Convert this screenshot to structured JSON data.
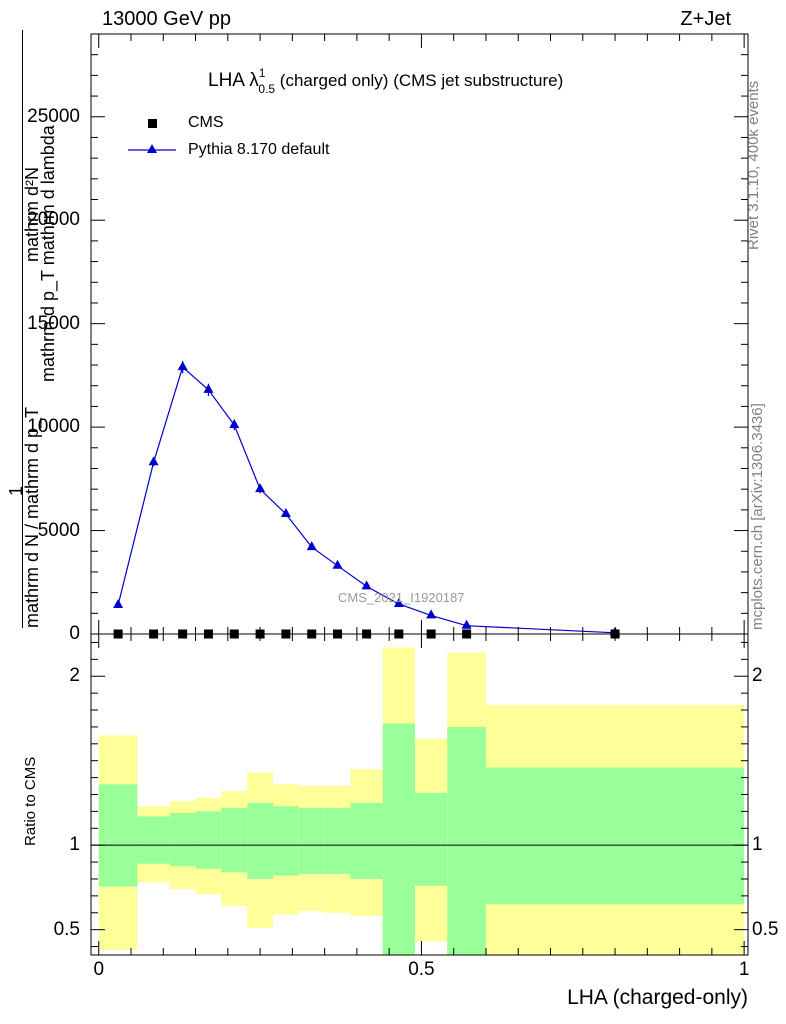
{
  "header": {
    "beam_label": "13000 GeV pp",
    "process_label": "Z+Jet"
  },
  "side_text": {
    "rivet": "Rivet 3.1.10,  400k events",
    "mcplots": "mcplots.cern.ch [arXiv:1306.3436]"
  },
  "watermark": "CMS_2021_I1920187",
  "colors": {
    "mc_line": "#0000cc",
    "band_inner": "#99ff99",
    "band_outer": "#ffff99",
    "data_marker": "#000000"
  },
  "chart_data": [
    {
      "type": "line",
      "title": "LHA λ¹₀.₅ (charged only) (CMS jet substructure)",
      "title_parts": {
        "main": "LHA λ",
        "sup": "1",
        "sub": "0.5",
        "rest": " (charged only) (CMS jet substructure)"
      },
      "ylabel_numerator": "mathrm d²N",
      "ylabel_line1": "mathrm d p_T mathrm d lambda",
      "ylabel_line2": "mathrm d N / mathrm d p_T",
      "ylabel_one": "1",
      "xlim": [
        -0.012,
        1.006
      ],
      "ylim": [
        0,
        29000
      ],
      "yticks": [
        0,
        5000,
        10000,
        15000,
        20000,
        25000
      ],
      "ytick_labels": [
        "0",
        "5000",
        "10000",
        "15000",
        "20000",
        "25000"
      ],
      "legend_position": "top-left",
      "series": [
        {
          "name": "CMS",
          "marker": "square",
          "x": [
            0.03,
            0.085,
            0.13,
            0.17,
            0.21,
            0.25,
            0.29,
            0.33,
            0.37,
            0.415,
            0.465,
            0.515,
            0.57,
            0.8
          ],
          "y": [
            0,
            0,
            0,
            0,
            0,
            0,
            0,
            0,
            0,
            0,
            0,
            0,
            0,
            0
          ]
        },
        {
          "name": "Pythia 8.170 default",
          "marker": "triangle",
          "x": [
            0.03,
            0.085,
            0.13,
            0.17,
            0.21,
            0.25,
            0.29,
            0.33,
            0.37,
            0.415,
            0.465,
            0.515,
            0.57,
            0.8
          ],
          "y": [
            1400,
            8300,
            12900,
            11800,
            10100,
            7000,
            5800,
            4200,
            3300,
            2300,
            1450,
            900,
            400,
            60
          ],
          "yerr": [
            60,
            200,
            300,
            300,
            250,
            200,
            150,
            120,
            100,
            80,
            60,
            40,
            20,
            10
          ]
        }
      ]
    },
    {
      "type": "area",
      "ylabel": "Ratio to CMS",
      "xlabel": "LHA (charged-only)",
      "xlim": [
        -0.012,
        1.006
      ],
      "ylim": [
        0.35,
        2.25
      ],
      "xticks": [
        0,
        0.5,
        1
      ],
      "xtick_labels": [
        "0",
        "0.5",
        "1"
      ],
      "yticks": [
        0.5,
        1,
        2
      ],
      "ytick_labels": [
        "0.5",
        "1",
        "2"
      ],
      "reference_line": 1,
      "bins": [
        {
          "lo": 0.0,
          "hi": 0.06,
          "inner": [
            0.755,
            1.36
          ],
          "outer": [
            0.38,
            1.65
          ]
        },
        {
          "lo": 0.06,
          "hi": 0.11,
          "inner": [
            0.89,
            1.17
          ],
          "outer": [
            0.78,
            1.23
          ]
        },
        {
          "lo": 0.11,
          "hi": 0.15,
          "inner": [
            0.875,
            1.19
          ],
          "outer": [
            0.74,
            1.26
          ]
        },
        {
          "lo": 0.15,
          "hi": 0.19,
          "inner": [
            0.86,
            1.2
          ],
          "outer": [
            0.71,
            1.28
          ]
        },
        {
          "lo": 0.19,
          "hi": 0.23,
          "inner": [
            0.84,
            1.22
          ],
          "outer": [
            0.64,
            1.32
          ]
        },
        {
          "lo": 0.23,
          "hi": 0.27,
          "inner": [
            0.8,
            1.25
          ],
          "outer": [
            0.51,
            1.43
          ]
        },
        {
          "lo": 0.27,
          "hi": 0.31,
          "inner": [
            0.82,
            1.23
          ],
          "outer": [
            0.59,
            1.36
          ]
        },
        {
          "lo": 0.31,
          "hi": 0.35,
          "inner": [
            0.83,
            1.22
          ],
          "outer": [
            0.61,
            1.35
          ]
        },
        {
          "lo": 0.35,
          "hi": 0.39,
          "inner": [
            0.83,
            1.22
          ],
          "outer": [
            0.6,
            1.35
          ]
        },
        {
          "lo": 0.39,
          "hi": 0.44,
          "inner": [
            0.8,
            1.25
          ],
          "outer": [
            0.58,
            1.45
          ]
        },
        {
          "lo": 0.44,
          "hi": 0.49,
          "inner": [
            0.35,
            1.72
          ],
          "outer": [
            0.35,
            2.17
          ]
        },
        {
          "lo": 0.49,
          "hi": 0.54,
          "inner": [
            0.76,
            1.31
          ],
          "outer": [
            0.43,
            1.63
          ]
        },
        {
          "lo": 0.54,
          "hi": 0.6,
          "inner": [
            0.35,
            1.7
          ],
          "outer": [
            0.35,
            2.14
          ]
        },
        {
          "lo": 0.6,
          "hi": 1.0,
          "inner": [
            0.65,
            1.46
          ],
          "outer": [
            0.35,
            1.83
          ]
        }
      ]
    }
  ]
}
